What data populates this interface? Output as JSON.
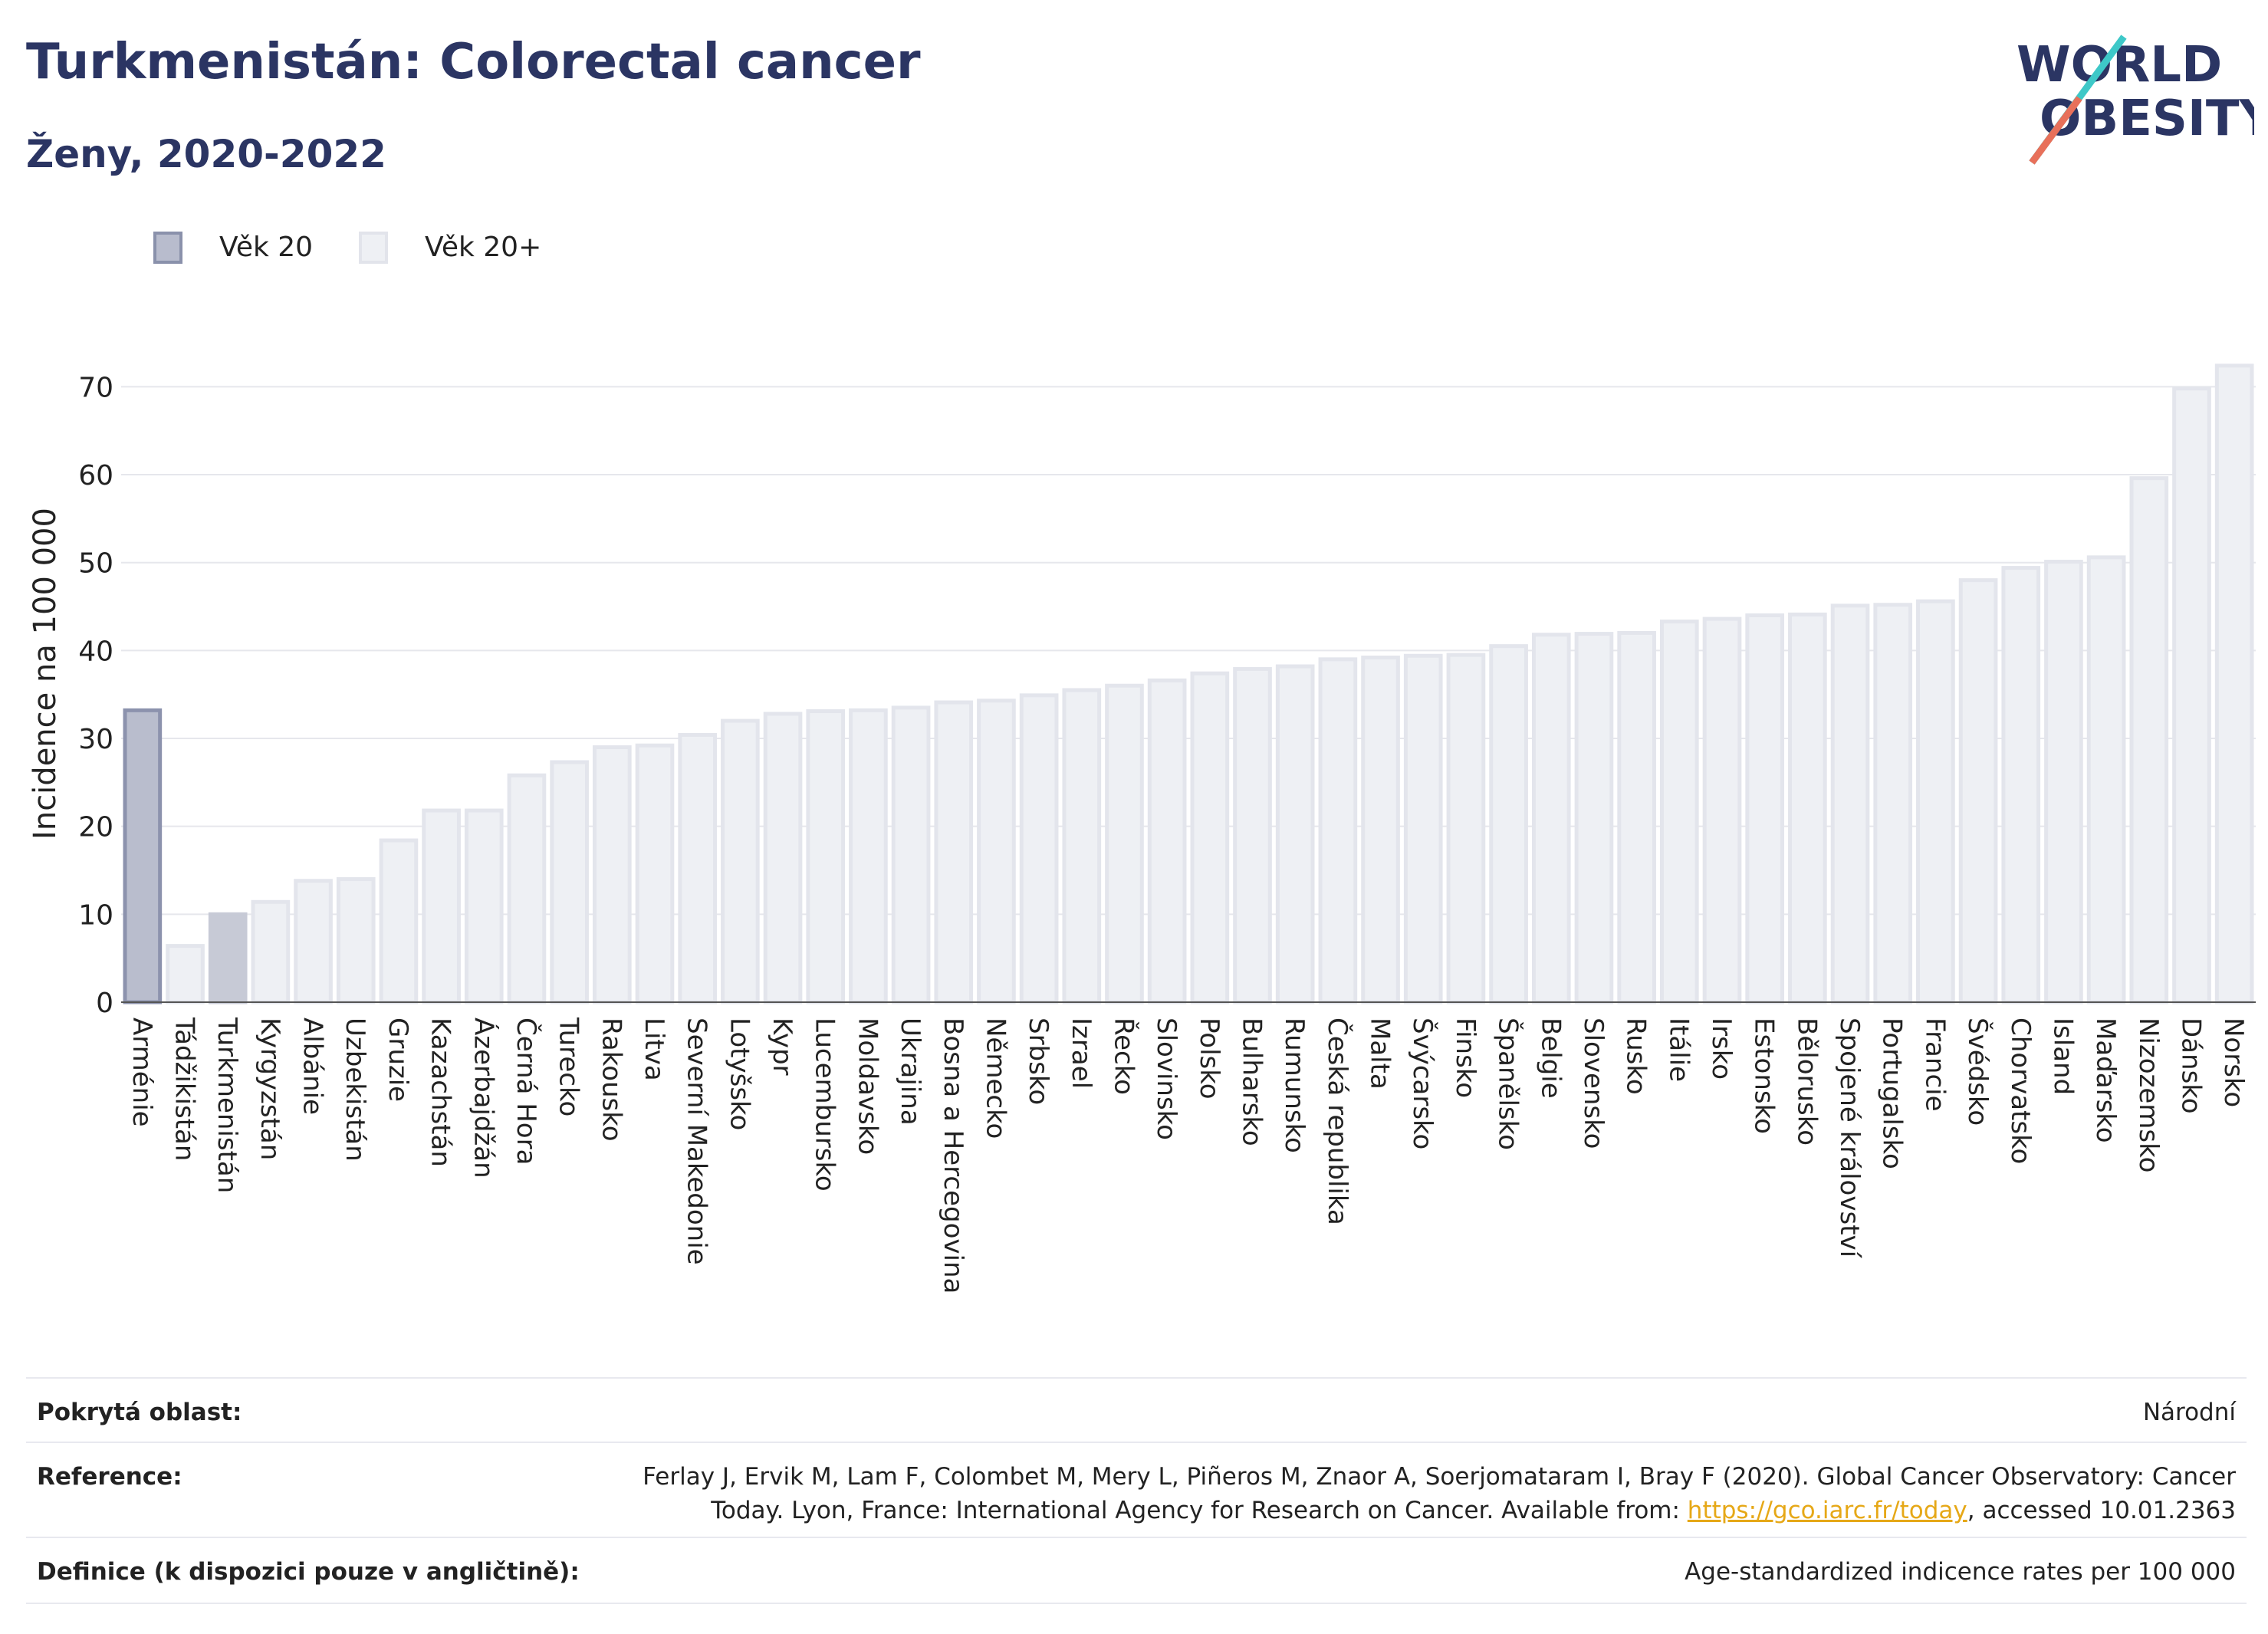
{
  "header": {
    "title": "Turkmenistán: Colorectal cancer",
    "subtitle": "Ženy, 2020-2022"
  },
  "logo": {
    "line1": "WORLD",
    "line2": "OBESITY"
  },
  "legend": [
    {
      "label": "Věk 20",
      "color": "#b8bccd",
      "border": "#8a91ab"
    },
    {
      "label": "Věk 20+",
      "color": "#eef0f4",
      "border": "#e2e4eb"
    }
  ],
  "chart_data": {
    "type": "bar",
    "ylabel": "Incidence na 100 000",
    "ylim": [
      0,
      73
    ],
    "yticks": [
      0,
      10,
      20,
      30,
      40,
      50,
      60,
      70
    ],
    "grid": true,
    "categories": [
      "Arménie",
      "Tádžikistán",
      "Turkmenistán",
      "Kyrgyzstán",
      "Albánie",
      "Uzbekistán",
      "Gruzie",
      "Kazachstán",
      "Ázerbajdžán",
      "Černá Hora",
      "Turecko",
      "Rakousko",
      "Litva",
      "Severní Makedonie",
      "Lotyšsko",
      "Kypr",
      "Lucembursko",
      "Moldavsko",
      "Ukrajina",
      "Bosna a Hercegovina",
      "Německo",
      "Srbsko",
      "Izrael",
      "Řecko",
      "Slovinsko",
      "Polsko",
      "Bulharsko",
      "Rumunsko",
      "Česká republika",
      "Malta",
      "Švýcarsko",
      "Finsko",
      "Španělsko",
      "Belgie",
      "Slovensko",
      "Rusko",
      "Itálie",
      "Irsko",
      "Estonsko",
      "Bělorusko",
      "Spojené království",
      "Portugalsko",
      "Francie",
      "Švédsko",
      "Chorvatsko",
      "Island",
      "Maďarsko",
      "Nizozemsko",
      "Dánsko",
      "Norsko"
    ],
    "values": [
      33.2,
      6.4,
      10.0,
      11.4,
      13.8,
      14.0,
      18.4,
      21.8,
      21.8,
      25.8,
      27.3,
      29.0,
      29.2,
      30.4,
      32.0,
      32.8,
      33.1,
      33.2,
      33.5,
      34.1,
      34.3,
      34.9,
      35.5,
      36.0,
      36.6,
      37.4,
      37.9,
      38.2,
      39.0,
      39.2,
      39.4,
      39.5,
      40.5,
      41.8,
      41.9,
      42.0,
      43.3,
      43.6,
      44.0,
      44.1,
      45.1,
      45.2,
      45.6,
      48.0,
      49.4,
      50.1,
      50.6,
      59.6,
      69.8,
      72.4
    ],
    "series_group": [
      "age20",
      "age20plus",
      "highlight",
      "age20plus",
      "age20plus",
      "age20plus",
      "age20plus",
      "age20plus",
      "age20plus",
      "age20plus",
      "age20plus",
      "age20plus",
      "age20plus",
      "age20plus",
      "age20plus",
      "age20plus",
      "age20plus",
      "age20plus",
      "age20plus",
      "age20plus",
      "age20plus",
      "age20plus",
      "age20plus",
      "age20plus",
      "age20plus",
      "age20plus",
      "age20plus",
      "age20plus",
      "age20plus",
      "age20plus",
      "age20plus",
      "age20plus",
      "age20plus",
      "age20plus",
      "age20plus",
      "age20plus",
      "age20plus",
      "age20plus",
      "age20plus",
      "age20plus",
      "age20plus",
      "age20plus",
      "age20plus",
      "age20plus",
      "age20plus",
      "age20plus",
      "age20plus",
      "age20plus",
      "age20plus",
      "age20plus"
    ],
    "colors": {
      "age20": {
        "fill": "#b9bdcd",
        "stroke": "#8c92ad"
      },
      "age20plus": {
        "fill": "#eef0f4",
        "stroke": "#e3e5ec"
      },
      "highlight": {
        "fill": "#c7cad6",
        "stroke": "#c7cad6"
      }
    }
  },
  "info": {
    "coverage_key": "Pokrytá oblast:",
    "coverage_val": "Národní",
    "reference_key": "Reference:",
    "reference_line1": "Ferlay J, Ervik M, Lam F, Colombet M, Mery L, Piñeros M, Znaor A, Soerjomataram I, Bray F (2020). Global Cancer Observatory: Cancer",
    "reference_line2_pre": "Today. Lyon, France: International Agency for Research on Cancer. Available from: ",
    "reference_link": "https://gco.iarc.fr/today",
    "reference_line2_post": ", accessed 10.01.2363",
    "definition_key": "Definice (k dispozici pouze v angličtině):",
    "definition_val": "Age-standardized indicence rates per 100 000"
  }
}
